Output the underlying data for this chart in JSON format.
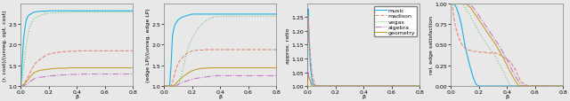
{
  "datasets": [
    "music",
    "madison",
    "vegas",
    "algebra",
    "geometry"
  ],
  "colors": [
    "#1ab0e0",
    "#e08878",
    "#70c870",
    "#c878c8",
    "#c0a030"
  ],
  "linestyles": [
    "-",
    "--",
    ":",
    "-.",
    "-"
  ],
  "lwidths": [
    1.0,
    1.0,
    1.0,
    1.0,
    1.0
  ],
  "beta": [
    0.0,
    0.005,
    0.01,
    0.02,
    0.03,
    0.04,
    0.05,
    0.06,
    0.07,
    0.08,
    0.09,
    0.1,
    0.12,
    0.14,
    0.16,
    0.18,
    0.2,
    0.22,
    0.24,
    0.26,
    0.28,
    0.3,
    0.32,
    0.34,
    0.36,
    0.38,
    0.4,
    0.42,
    0.44,
    0.46,
    0.48,
    0.5,
    0.55,
    0.6,
    0.65,
    0.7,
    0.75,
    0.8
  ],
  "plot1": {
    "ylabel": "(r. cost)/(unreg. opt. cost)",
    "xlabel": "β",
    "ylim": [
      1.0,
      3.0
    ],
    "yticks": [
      1.0,
      1.5,
      2.0,
      2.5
    ],
    "xticks": [
      0.0,
      0.2,
      0.4,
      0.6,
      0.8
    ],
    "music": [
      1.0,
      1.15,
      1.5,
      2.1,
      2.4,
      2.6,
      2.68,
      2.72,
      2.74,
      2.76,
      2.78,
      2.79,
      2.8,
      2.81,
      2.81,
      2.81,
      2.82,
      2.82,
      2.82,
      2.82,
      2.82,
      2.82,
      2.82,
      2.82,
      2.82,
      2.82,
      2.82,
      2.82,
      2.82,
      2.82,
      2.82,
      2.82,
      2.82,
      2.82,
      2.82,
      2.82,
      2.82,
      2.82
    ],
    "madison": [
      1.0,
      1.01,
      1.02,
      1.05,
      1.09,
      1.14,
      1.2,
      1.27,
      1.35,
      1.42,
      1.48,
      1.53,
      1.6,
      1.65,
      1.7,
      1.74,
      1.77,
      1.79,
      1.8,
      1.81,
      1.82,
      1.83,
      1.83,
      1.84,
      1.84,
      1.84,
      1.85,
      1.85,
      1.85,
      1.85,
      1.85,
      1.85,
      1.85,
      1.85,
      1.85,
      1.85,
      1.85,
      1.85
    ],
    "vegas": [
      1.0,
      1.05,
      1.15,
      1.4,
      1.7,
      2.0,
      2.2,
      2.38,
      2.48,
      2.55,
      2.6,
      2.64,
      2.68,
      2.71,
      2.73,
      2.75,
      2.76,
      2.77,
      2.77,
      2.77,
      2.78,
      2.78,
      2.78,
      2.78,
      2.79,
      2.79,
      2.79,
      2.79,
      2.79,
      2.79,
      2.79,
      2.79,
      2.79,
      2.79,
      2.79,
      2.79,
      2.79,
      2.79
    ],
    "algebra": [
      1.0,
      1.0,
      1.0,
      1.01,
      1.02,
      1.04,
      1.06,
      1.09,
      1.11,
      1.14,
      1.16,
      1.18,
      1.2,
      1.21,
      1.22,
      1.23,
      1.24,
      1.25,
      1.25,
      1.26,
      1.26,
      1.27,
      1.27,
      1.27,
      1.28,
      1.28,
      1.28,
      1.28,
      1.29,
      1.29,
      1.29,
      1.29,
      1.29,
      1.29,
      1.29,
      1.29,
      1.29,
      1.29
    ],
    "geometry": [
      1.0,
      1.0,
      1.01,
      1.03,
      1.06,
      1.1,
      1.14,
      1.19,
      1.23,
      1.27,
      1.3,
      1.33,
      1.36,
      1.38,
      1.39,
      1.4,
      1.41,
      1.42,
      1.42,
      1.43,
      1.43,
      1.43,
      1.43,
      1.44,
      1.44,
      1.44,
      1.44,
      1.44,
      1.44,
      1.44,
      1.44,
      1.44,
      1.44,
      1.44,
      1.44,
      1.44,
      1.44,
      1.44
    ]
  },
  "plot2": {
    "ylabel": "(edge LP)/(unreg. edge LP)",
    "xlabel": "β",
    "ylim": [
      1.0,
      3.0
    ],
    "yticks": [
      1.0,
      1.5,
      2.0,
      2.5
    ],
    "xticks": [
      0.0,
      0.2,
      0.4,
      0.6,
      0.8
    ],
    "music": [
      1.0,
      1.0,
      1.0,
      1.0,
      1.0,
      1.0,
      1.5,
      2.2,
      2.4,
      2.5,
      2.55,
      2.6,
      2.65,
      2.68,
      2.7,
      2.72,
      2.74,
      2.74,
      2.74,
      2.74,
      2.74,
      2.74,
      2.74,
      2.74,
      2.74,
      2.74,
      2.74,
      2.74,
      2.74,
      2.74,
      2.74,
      2.74,
      2.74,
      2.74,
      2.74,
      2.74,
      2.74,
      2.74
    ],
    "madison": [
      1.0,
      1.0,
      1.0,
      1.0,
      1.0,
      1.0,
      1.0,
      1.1,
      1.2,
      1.35,
      1.45,
      1.55,
      1.65,
      1.72,
      1.78,
      1.82,
      1.85,
      1.86,
      1.87,
      1.87,
      1.87,
      1.88,
      1.88,
      1.88,
      1.88,
      1.88,
      1.88,
      1.88,
      1.88,
      1.88,
      1.88,
      1.88,
      1.88,
      1.88,
      1.88,
      1.88,
      1.88,
      1.88
    ],
    "vegas": [
      1.0,
      1.0,
      1.0,
      1.0,
      1.0,
      1.0,
      1.0,
      1.0,
      1.0,
      1.0,
      1.0,
      1.0,
      1.2,
      1.5,
      1.8,
      2.0,
      2.15,
      2.28,
      2.38,
      2.46,
      2.53,
      2.58,
      2.62,
      2.65,
      2.67,
      2.68,
      2.69,
      2.69,
      2.69,
      2.69,
      2.69,
      2.69,
      2.69,
      2.69,
      2.69,
      2.69,
      2.69,
      2.69
    ],
    "algebra": [
      1.0,
      1.0,
      1.0,
      1.0,
      1.0,
      1.0,
      1.0,
      1.0,
      1.0,
      1.0,
      1.02,
      1.04,
      1.07,
      1.1,
      1.12,
      1.14,
      1.16,
      1.18,
      1.19,
      1.2,
      1.21,
      1.22,
      1.23,
      1.24,
      1.24,
      1.25,
      1.25,
      1.25,
      1.25,
      1.25,
      1.25,
      1.25,
      1.25,
      1.25,
      1.25,
      1.25,
      1.25,
      1.25
    ],
    "geometry": [
      1.0,
      1.0,
      1.0,
      1.0,
      1.0,
      1.0,
      1.0,
      1.0,
      1.02,
      1.05,
      1.08,
      1.12,
      1.18,
      1.24,
      1.29,
      1.33,
      1.37,
      1.39,
      1.41,
      1.42,
      1.43,
      1.43,
      1.44,
      1.44,
      1.44,
      1.44,
      1.44,
      1.44,
      1.44,
      1.44,
      1.44,
      1.44,
      1.44,
      1.44,
      1.44,
      1.44,
      1.44,
      1.44
    ]
  },
  "plot3": {
    "ylabel": "approx. ratio",
    "xlabel": "β",
    "ylim": [
      1.0,
      1.3
    ],
    "yticks": [
      1.0,
      1.05,
      1.1,
      1.15,
      1.2,
      1.25
    ],
    "xticks": [
      0.0,
      0.2,
      0.4,
      0.6,
      0.8
    ],
    "music": [
      1.0,
      1.28,
      1.2,
      1.08,
      1.03,
      1.01,
      1.0,
      1.0,
      1.0,
      1.0,
      1.0,
      1.0,
      1.0,
      1.0,
      1.0,
      1.0,
      1.0,
      1.0,
      1.0,
      1.0,
      1.0,
      1.0,
      1.0,
      1.0,
      1.0,
      1.0,
      1.0,
      1.0,
      1.0,
      1.0,
      1.0,
      1.0,
      1.0,
      1.0,
      1.0,
      1.0,
      1.0,
      1.0
    ],
    "madison": [
      1.0,
      1.25,
      1.2,
      1.12,
      1.06,
      1.03,
      1.01,
      1.0,
      1.0,
      1.0,
      1.0,
      1.0,
      1.0,
      1.0,
      1.0,
      1.0,
      1.0,
      1.0,
      1.0,
      1.0,
      1.0,
      1.0,
      1.0,
      1.0,
      1.0,
      1.0,
      1.0,
      1.0,
      1.0,
      1.0,
      1.0,
      1.0,
      1.0,
      1.0,
      1.0,
      1.0,
      1.0,
      1.0
    ],
    "vegas": [
      1.0,
      1.0,
      1.0,
      1.0,
      1.0,
      1.0,
      1.0,
      1.0,
      1.0,
      1.0,
      1.0,
      1.0,
      1.0,
      1.0,
      1.0,
      1.0,
      1.0,
      1.0,
      1.0,
      1.0,
      1.0,
      1.0,
      1.0,
      1.0,
      1.0,
      1.0,
      1.0,
      1.0,
      1.0,
      1.0,
      1.0,
      1.0,
      1.0,
      1.0,
      1.0,
      1.0,
      1.0,
      1.0
    ],
    "algebra": [
      1.0,
      1.05,
      1.04,
      1.02,
      1.01,
      1.0,
      1.0,
      1.0,
      1.0,
      1.0,
      1.0,
      1.0,
      1.0,
      1.0,
      1.0,
      1.0,
      1.0,
      1.0,
      1.0,
      1.0,
      1.0,
      1.0,
      1.0,
      1.0,
      1.0,
      1.0,
      1.0,
      1.0,
      1.0,
      1.0,
      1.0,
      1.0,
      1.0,
      1.0,
      1.0,
      1.0,
      1.0,
      1.0
    ],
    "geometry": [
      1.0,
      1.04,
      1.03,
      1.02,
      1.0,
      1.0,
      1.0,
      1.0,
      1.0,
      1.0,
      1.0,
      1.0,
      1.0,
      1.0,
      1.0,
      1.0,
      1.0,
      1.0,
      1.0,
      1.0,
      1.0,
      1.0,
      1.0,
      1.0,
      1.0,
      1.0,
      1.0,
      1.0,
      1.0,
      1.0,
      1.0,
      1.0,
      1.0,
      1.0,
      1.0,
      1.0,
      1.0,
      1.0
    ]
  },
  "plot4": {
    "ylabel": "rel. edge satisfaction",
    "xlabel": "β",
    "ylim": [
      0.0,
      1.0
    ],
    "yticks": [
      0.0,
      0.25,
      0.5,
      0.75,
      1.0
    ],
    "xticks": [
      0.0,
      0.2,
      0.4,
      0.6,
      0.8
    ],
    "music": [
      1.0,
      1.0,
      1.0,
      1.0,
      0.98,
      0.95,
      0.9,
      0.85,
      0.78,
      0.7,
      0.6,
      0.5,
      0.35,
      0.22,
      0.1,
      0.02,
      0.0,
      0.0,
      0.0,
      0.0,
      0.0,
      0.0,
      0.0,
      0.0,
      0.0,
      0.0,
      0.0,
      0.0,
      0.0,
      0.0,
      0.0,
      0.0,
      0.0,
      0.0,
      0.0,
      0.0,
      0.0,
      0.0
    ],
    "madison": [
      1.0,
      1.0,
      1.0,
      0.85,
      0.75,
      0.68,
      0.62,
      0.57,
      0.53,
      0.5,
      0.48,
      0.46,
      0.44,
      0.43,
      0.42,
      0.42,
      0.41,
      0.41,
      0.41,
      0.4,
      0.4,
      0.4,
      0.4,
      0.38,
      0.37,
      0.35,
      0.32,
      0.3,
      0.25,
      0.2,
      0.12,
      0.05,
      0.0,
      0.0,
      0.0,
      0.0,
      0.0,
      0.0
    ],
    "vegas": [
      1.0,
      1.0,
      1.0,
      1.0,
      1.0,
      1.0,
      1.0,
      1.0,
      1.0,
      1.0,
      0.98,
      0.95,
      0.9,
      0.85,
      0.78,
      0.72,
      0.65,
      0.6,
      0.55,
      0.5,
      0.45,
      0.4,
      0.35,
      0.28,
      0.22,
      0.15,
      0.08,
      0.02,
      0.0,
      0.0,
      0.0,
      0.0,
      0.0,
      0.0,
      0.0,
      0.0,
      0.0,
      0.0
    ],
    "algebra": [
      1.0,
      1.0,
      1.0,
      1.0,
      1.0,
      1.0,
      1.0,
      1.0,
      1.0,
      1.0,
      1.0,
      1.0,
      1.0,
      0.98,
      0.95,
      0.9,
      0.85,
      0.8,
      0.75,
      0.7,
      0.65,
      0.6,
      0.55,
      0.5,
      0.44,
      0.38,
      0.32,
      0.25,
      0.18,
      0.12,
      0.06,
      0.01,
      0.0,
      0.0,
      0.0,
      0.0,
      0.0,
      0.0
    ],
    "geometry": [
      1.0,
      1.0,
      1.0,
      1.0,
      1.0,
      1.0,
      1.0,
      1.0,
      1.0,
      1.0,
      1.0,
      1.0,
      0.98,
      0.95,
      0.9,
      0.85,
      0.8,
      0.75,
      0.7,
      0.65,
      0.6,
      0.55,
      0.5,
      0.44,
      0.38,
      0.32,
      0.25,
      0.18,
      0.12,
      0.06,
      0.01,
      0.0,
      0.0,
      0.0,
      0.0,
      0.0,
      0.0,
      0.0
    ]
  },
  "bg_color": "#e8e8e8",
  "fig_bg_color": "#e8e8e8",
  "tick_fontsize": 4.5,
  "label_fontsize": 4.5,
  "legend_fontsize": 4.5
}
